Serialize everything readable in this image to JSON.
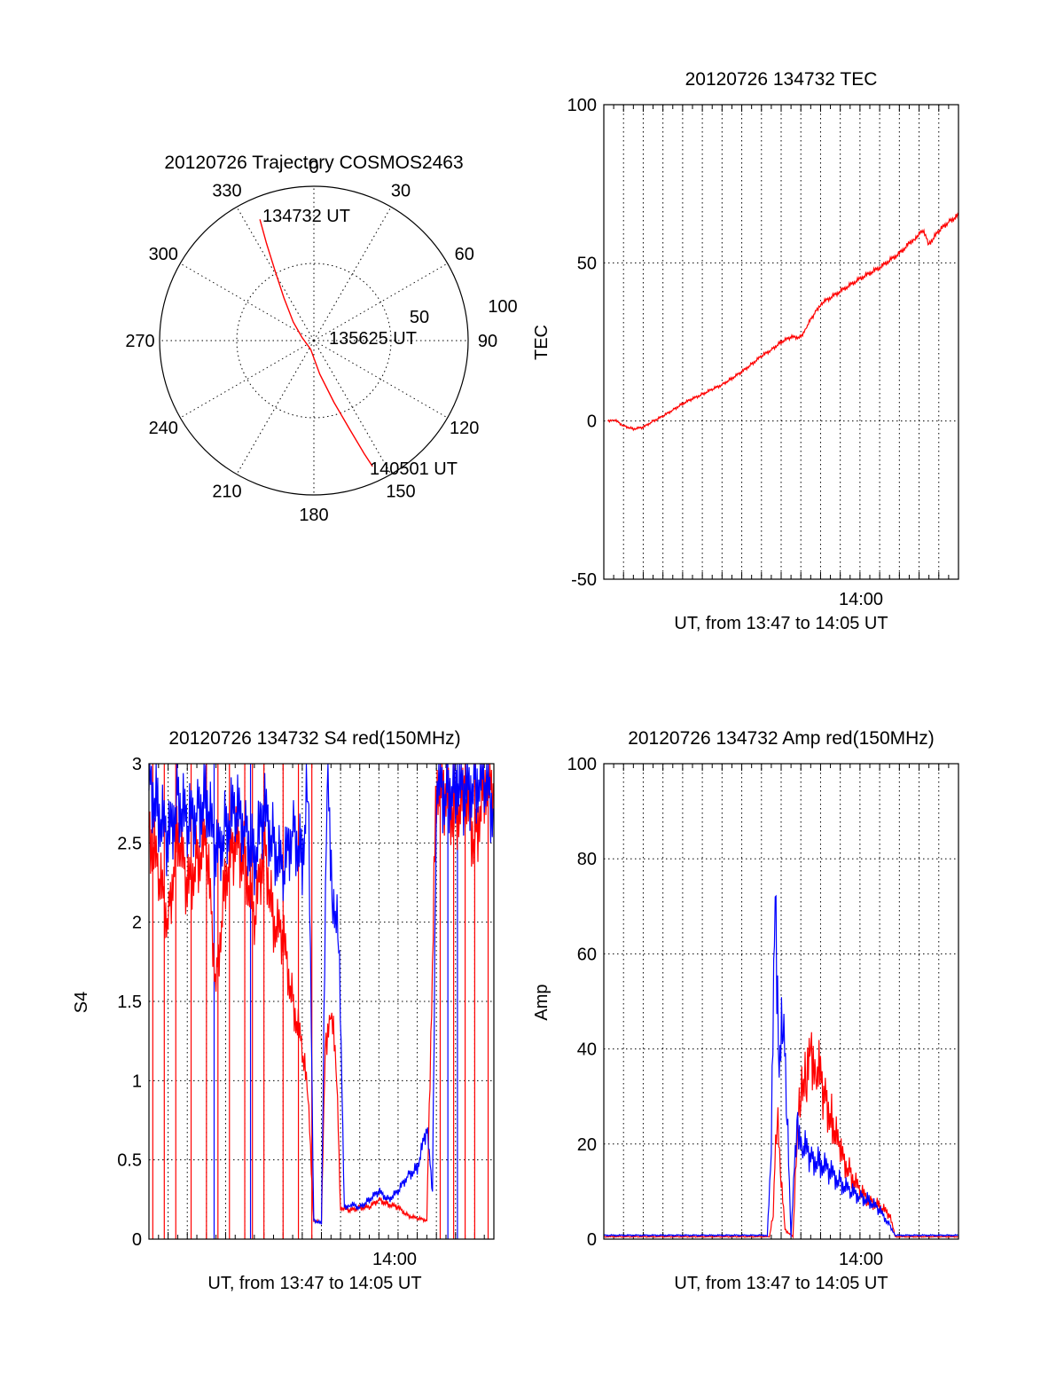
{
  "chart_data": [
    {
      "type": "polar",
      "title": "20120726 Trajectory COSMOS2463",
      "azimuth_labels": [
        "0",
        "30",
        "60",
        "90",
        "120",
        "150",
        "180",
        "210",
        "240",
        "270",
        "300",
        "330"
      ],
      "radial_labels": [
        "50",
        "100"
      ],
      "rlim": [
        0,
        100
      ],
      "grid": true,
      "track_color": "#ff0000",
      "track": [
        {
          "az": 336,
          "r": 86
        },
        {
          "az": 334,
          "r": 70
        },
        {
          "az": 331,
          "r": 52
        },
        {
          "az": 325,
          "r": 34
        },
        {
          "az": 312,
          "r": 18
        },
        {
          "az": 285,
          "r": 8
        },
        {
          "az": 200,
          "r": 6
        },
        {
          "az": 170,
          "r": 22
        },
        {
          "az": 162,
          "r": 42
        },
        {
          "az": 158,
          "r": 62
        },
        {
          "az": 156,
          "r": 80
        },
        {
          "az": 155,
          "r": 90
        }
      ],
      "annotations": [
        "134732 UT",
        "135625 UT",
        "140501 UT"
      ]
    },
    {
      "type": "line",
      "title": "20120726 134732 TEC",
      "xlabel": "UT, from 13:47 to 14:05 UT",
      "ylabel": "TEC",
      "x_ticks": [
        {
          "t": 13,
          "label": "14:00"
        }
      ],
      "xlim": [
        0,
        18
      ],
      "ylim": [
        -50,
        100
      ],
      "y_ticks": [
        -50,
        0,
        50,
        100
      ],
      "grid": true,
      "series": [
        {
          "color": "#ff0000",
          "points": [
            [
              0.2,
              0
            ],
            [
              0.5,
              0.5
            ],
            [
              1,
              -1.5
            ],
            [
              1.5,
              -2.5
            ],
            [
              2,
              -2
            ],
            [
              2.5,
              0
            ],
            [
              3,
              1.5
            ],
            [
              3.5,
              3.5
            ],
            [
              4,
              5.5
            ],
            [
              4.5,
              7
            ],
            [
              5,
              8.5
            ],
            [
              5.5,
              10
            ],
            [
              6,
              11.5
            ],
            [
              6.5,
              13.5
            ],
            [
              7,
              15.5
            ],
            [
              7.5,
              18
            ],
            [
              8,
              20.5
            ],
            [
              8.5,
              22.5
            ],
            [
              9,
              25
            ],
            [
              9.5,
              26.5
            ],
            [
              10,
              26.5
            ],
            [
              10.3,
              30
            ],
            [
              10.7,
              34
            ],
            [
              11,
              37
            ],
            [
              12,
              41
            ],
            [
              13,
              45
            ],
            [
              14,
              48.5
            ],
            [
              15,
              53
            ],
            [
              15.8,
              58
            ],
            [
              16.2,
              60
            ],
            [
              16.5,
              56
            ],
            [
              17,
              60
            ],
            [
              17.5,
              63
            ],
            [
              18,
              65
            ]
          ]
        }
      ]
    },
    {
      "type": "line",
      "title": "20120726 134732 S4 red(150MHz)",
      "xlabel": "UT, from 13:47 to 14:05 UT",
      "ylabel": "S4",
      "x_ticks": [
        {
          "t": 13,
          "label": "14:00"
        }
      ],
      "xlim": [
        0,
        18
      ],
      "ylim": [
        0,
        3
      ],
      "y_ticks": [
        "0",
        "0.5",
        "1",
        "1.5",
        "2",
        "2.5",
        "3"
      ],
      "grid": true,
      "series": [
        {
          "color": "#ff0000",
          "points": [
            [
              0,
              2.6
            ],
            [
              0.5,
              2.3
            ],
            [
              1,
              2.0
            ],
            [
              1.5,
              2.6
            ],
            [
              2,
              2.2
            ],
            [
              2.5,
              2.4
            ],
            [
              3,
              2.5
            ],
            [
              3.5,
              1.6
            ],
            [
              4,
              2.3
            ],
            [
              4.5,
              2.5
            ],
            [
              5,
              2.4
            ],
            [
              5.5,
              2.0
            ],
            [
              6,
              2.5
            ],
            [
              6.5,
              2.0
            ],
            [
              7,
              1.9
            ],
            [
              7.5,
              1.5
            ],
            [
              8,
              1.2
            ],
            [
              8.3,
              0.9
            ],
            [
              8.6,
              0.12
            ],
            [
              9,
              0.1
            ],
            [
              9.2,
              1.2
            ],
            [
              9.5,
              1.5
            ],
            [
              9.8,
              1.0
            ],
            [
              10,
              0.2
            ],
            [
              10.5,
              0.18
            ],
            [
              11,
              0.2
            ],
            [
              11.5,
              0.2
            ],
            [
              12,
              0.25
            ],
            [
              12.5,
              0.22
            ],
            [
              13,
              0.2
            ],
            [
              13.5,
              0.15
            ],
            [
              14,
              0.13
            ],
            [
              14.5,
              0.12
            ],
            [
              15,
              2.9
            ],
            [
              15.5,
              2.8
            ],
            [
              16,
              2.7
            ],
            [
              16.5,
              2.8
            ],
            [
              17,
              2.5
            ],
            [
              17.5,
              2.9
            ],
            [
              18,
              2.8
            ]
          ]
        },
        {
          "color": "#0000ff",
          "points": [
            [
              0,
              2.9
            ],
            [
              0.5,
              2.7
            ],
            [
              1,
              2.5
            ],
            [
              1.5,
              2.8
            ],
            [
              2,
              2.6
            ],
            [
              2.5,
              2.7
            ],
            [
              3,
              2.8
            ],
            [
              3.5,
              2.4
            ],
            [
              4,
              2.6
            ],
            [
              4.5,
              2.7
            ],
            [
              5,
              2.6
            ],
            [
              5.5,
              2.4
            ],
            [
              6,
              2.7
            ],
            [
              6.5,
              2.5
            ],
            [
              7,
              2.3
            ],
            [
              7.5,
              2.6
            ],
            [
              8,
              2.4
            ],
            [
              8.3,
              2.9
            ],
            [
              8.6,
              0.12
            ],
            [
              9,
              0.1
            ],
            [
              9.3,
              2.9
            ],
            [
              9.6,
              2.2
            ],
            [
              9.9,
              1.9
            ],
            [
              10.2,
              0.2
            ],
            [
              10.5,
              0.22
            ],
            [
              11,
              0.2
            ],
            [
              11.5,
              0.25
            ],
            [
              12,
              0.3
            ],
            [
              12.5,
              0.25
            ],
            [
              13,
              0.3
            ],
            [
              13.5,
              0.4
            ],
            [
              14,
              0.45
            ],
            [
              14.5,
              0.7
            ],
            [
              14.8,
              0.3
            ],
            [
              15,
              2.9
            ],
            [
              15.5,
              2.8
            ],
            [
              16,
              2.9
            ],
            [
              16.5,
              2.8
            ],
            [
              17,
              2.9
            ],
            [
              17.5,
              2.9
            ],
            [
              18,
              2.7
            ]
          ]
        }
      ],
      "dropouts": {
        "red": [
          0.2,
          0.8,
          1.4,
          2.2,
          3.0,
          3.6,
          4.2,
          5.0,
          5.4,
          6.0,
          7.0,
          7.8,
          8.5,
          15.2,
          15.9,
          16.5,
          17.0,
          17.7
        ],
        "blue": [
          3.4,
          5.3,
          15.6,
          16.1
        ]
      }
    },
    {
      "type": "line",
      "title": "20120726 134732 Amp red(150MHz)",
      "xlabel": "UT, from 13:47 to 14:05 UT",
      "ylabel": "Amp",
      "x_ticks": [
        {
          "t": 13,
          "label": "14:00"
        }
      ],
      "xlim": [
        0,
        18
      ],
      "ylim": [
        0,
        100
      ],
      "y_ticks": [
        0,
        20,
        40,
        60,
        80,
        100
      ],
      "grid": true,
      "series": [
        {
          "color": "#ff0000",
          "points": [
            [
              0,
              0.5
            ],
            [
              8.4,
              0.5
            ],
            [
              8.6,
              5
            ],
            [
              8.8,
              30
            ],
            [
              9.0,
              12
            ],
            [
              9.2,
              2
            ],
            [
              9.6,
              0.5
            ],
            [
              9.8,
              20
            ],
            [
              10.0,
              35
            ],
            [
              10.3,
              32
            ],
            [
              10.5,
              40
            ],
            [
              10.8,
              37
            ],
            [
              11.2,
              30
            ],
            [
              11.6,
              25
            ],
            [
              12,
              18
            ],
            [
              12.5,
              14
            ],
            [
              13,
              10
            ],
            [
              13.5,
              8
            ],
            [
              14,
              7
            ],
            [
              14.5,
              5
            ],
            [
              14.8,
              0.5
            ],
            [
              18,
              0.5
            ]
          ]
        },
        {
          "color": "#0000ff",
          "points": [
            [
              0,
              0.8
            ],
            [
              8.3,
              0.8
            ],
            [
              8.5,
              20
            ],
            [
              8.7,
              72
            ],
            [
              8.9,
              40
            ],
            [
              9.1,
              44
            ],
            [
              9.3,
              30
            ],
            [
              9.5,
              0.5
            ],
            [
              9.8,
              25
            ],
            [
              10.1,
              20
            ],
            [
              10.5,
              17
            ],
            [
              11,
              16
            ],
            [
              11.5,
              14
            ],
            [
              12,
              12
            ],
            [
              12.5,
              10
            ],
            [
              13,
              9
            ],
            [
              13.5,
              8
            ],
            [
              14,
              6
            ],
            [
              14.5,
              3
            ],
            [
              14.8,
              0.8
            ],
            [
              18,
              0.8
            ]
          ]
        }
      ]
    }
  ]
}
